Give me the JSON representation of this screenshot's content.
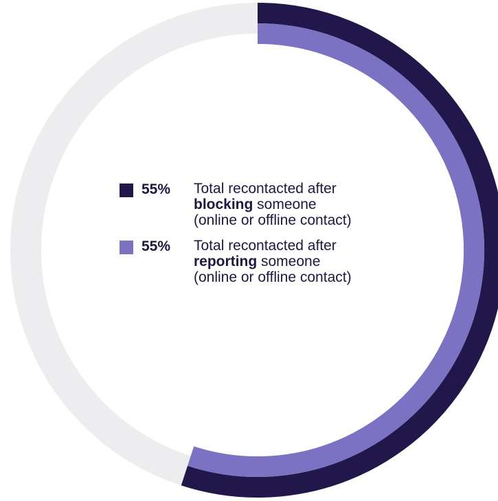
{
  "colors": {
    "blocking": "#21174a",
    "reporting": "#7b72c4",
    "track": "#ededf0"
  },
  "chart_data": {
    "type": "donut",
    "unit": "%",
    "max": 100,
    "series": [
      {
        "value": 55,
        "value_label": "55%",
        "label_line1": "Total recontacted after",
        "label_bold": "blocking",
        "label_rest": " someone",
        "label_line3": "(online or offline contact)",
        "color": "#21174a"
      },
      {
        "value": 55,
        "value_label": "55%",
        "label_line1": "Total recontacted after",
        "label_bold": "reporting",
        "label_rest": " someone",
        "label_line3": "(online or offline contact)",
        "color": "#7b72c4"
      }
    ]
  }
}
